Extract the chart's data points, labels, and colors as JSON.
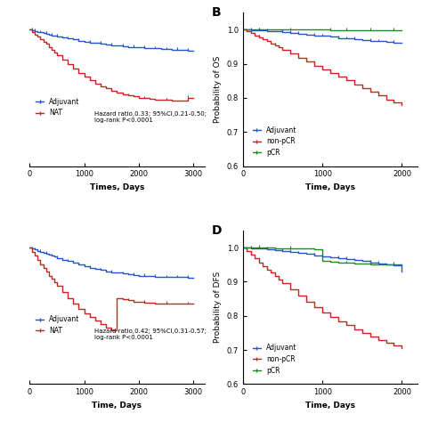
{
  "panel_A": {
    "blue_x": [
      0,
      50,
      100,
      150,
      200,
      250,
      300,
      350,
      400,
      450,
      500,
      600,
      700,
      800,
      900,
      1000,
      1100,
      1200,
      1300,
      1400,
      1500,
      1600,
      1700,
      1800,
      1900,
      2000,
      2100,
      2200,
      2300,
      2400,
      2500,
      2600,
      2700,
      2800,
      2900,
      3000
    ],
    "blue_y": [
      1.0,
      0.998,
      0.996,
      0.994,
      0.992,
      0.99,
      0.988,
      0.986,
      0.984,
      0.982,
      0.98,
      0.977,
      0.974,
      0.971,
      0.968,
      0.965,
      0.963,
      0.961,
      0.959,
      0.957,
      0.955,
      0.953,
      0.951,
      0.95,
      0.949,
      0.948,
      0.947,
      0.946,
      0.945,
      0.944,
      0.943,
      0.942,
      0.941,
      0.94,
      0.939,
      0.938
    ],
    "red_x": [
      0,
      50,
      100,
      150,
      200,
      250,
      300,
      350,
      400,
      450,
      500,
      600,
      700,
      800,
      900,
      1000,
      1100,
      1200,
      1300,
      1400,
      1500,
      1600,
      1700,
      1800,
      1900,
      2000,
      2100,
      2200,
      2300,
      2400,
      2500,
      2600,
      2700,
      2800,
      2900,
      3000
    ],
    "red_y": [
      1.0,
      0.993,
      0.986,
      0.979,
      0.972,
      0.965,
      0.958,
      0.95,
      0.942,
      0.934,
      0.926,
      0.912,
      0.898,
      0.885,
      0.873,
      0.862,
      0.852,
      0.843,
      0.835,
      0.828,
      0.822,
      0.816,
      0.811,
      0.807,
      0.804,
      0.801,
      0.799,
      0.797,
      0.796,
      0.795,
      0.794,
      0.793,
      0.792,
      0.791,
      0.8,
      0.8
    ],
    "xlabel": "Times, Days",
    "ylabel": "",
    "xlim": [
      0,
      3200
    ],
    "ylim": [
      0.6,
      1.05
    ],
    "xticks": [
      0,
      1000,
      2000,
      3000
    ],
    "hazard_text": "Hazard ratio,0.33; 95%CI,0.21-0.50;\nlog-rank P<0.0001"
  },
  "panel_B": {
    "blue_x": [
      0,
      100,
      200,
      300,
      400,
      500,
      600,
      700,
      800,
      900,
      1000,
      1100,
      1200,
      1300,
      1400,
      1500,
      1600,
      1700,
      1800,
      1900,
      2000
    ],
    "blue_y": [
      1.0,
      0.999,
      0.998,
      0.997,
      0.995,
      0.993,
      0.991,
      0.988,
      0.986,
      0.984,
      0.982,
      0.979,
      0.976,
      0.974,
      0.972,
      0.97,
      0.968,
      0.966,
      0.964,
      0.963,
      0.962
    ],
    "red_x": [
      0,
      50,
      100,
      150,
      200,
      250,
      300,
      350,
      400,
      450,
      500,
      600,
      700,
      800,
      900,
      1000,
      1100,
      1200,
      1300,
      1400,
      1500,
      1600,
      1700,
      1800,
      1900,
      2000
    ],
    "red_y": [
      1.0,
      0.995,
      0.99,
      0.984,
      0.978,
      0.972,
      0.966,
      0.96,
      0.954,
      0.948,
      0.942,
      0.93,
      0.918,
      0.906,
      0.895,
      0.884,
      0.873,
      0.862,
      0.851,
      0.84,
      0.829,
      0.818,
      0.807,
      0.796,
      0.787,
      0.778
    ],
    "green_x": [
      0,
      200,
      400,
      600,
      800,
      1000,
      1100,
      1200,
      1300,
      1400,
      1500,
      1600,
      1700,
      1800,
      1900,
      2000
    ],
    "green_y": [
      1.0,
      1.0,
      1.0,
      1.0,
      1.0,
      1.0,
      0.999,
      0.999,
      0.999,
      0.999,
      0.999,
      0.999,
      0.999,
      0.998,
      0.998,
      0.998
    ],
    "xlabel": "Time, Days",
    "ylabel": "Probability of OS",
    "xlim": [
      0,
      2200
    ],
    "ylim": [
      0.6,
      1.05
    ],
    "xticks": [
      0,
      1000,
      2000
    ],
    "yticks": [
      0.6,
      0.7,
      0.8,
      0.9,
      1.0
    ],
    "panel_label": "B"
  },
  "panel_C": {
    "blue_x": [
      0,
      50,
      100,
      150,
      200,
      250,
      300,
      350,
      400,
      450,
      500,
      600,
      700,
      800,
      900,
      1000,
      1100,
      1200,
      1300,
      1400,
      1500,
      1600,
      1700,
      1800,
      1900,
      2000,
      2100,
      2200,
      2300,
      2400,
      2500,
      2600,
      2700,
      2800,
      2900,
      3000
    ],
    "blue_y": [
      1.0,
      0.997,
      0.994,
      0.991,
      0.988,
      0.985,
      0.982,
      0.979,
      0.976,
      0.973,
      0.97,
      0.965,
      0.96,
      0.955,
      0.95,
      0.945,
      0.941,
      0.937,
      0.934,
      0.931,
      0.928,
      0.926,
      0.924,
      0.922,
      0.92,
      0.918,
      0.917,
      0.916,
      0.915,
      0.914,
      0.913,
      0.913,
      0.913,
      0.913,
      0.912,
      0.912
    ],
    "red_x": [
      0,
      50,
      100,
      150,
      200,
      250,
      300,
      350,
      400,
      450,
      500,
      600,
      700,
      800,
      900,
      1000,
      1100,
      1200,
      1300,
      1400,
      1500,
      1600,
      1700,
      1800,
      1900,
      2000,
      2100,
      2200,
      2300,
      2400,
      2500,
      2600,
      2700,
      2800,
      2900,
      3000
    ],
    "red_y": [
      1.0,
      0.988,
      0.976,
      0.964,
      0.952,
      0.94,
      0.929,
      0.918,
      0.908,
      0.898,
      0.888,
      0.869,
      0.852,
      0.836,
      0.821,
      0.808,
      0.796,
      0.785,
      0.775,
      0.766,
      0.758,
      0.852,
      0.848,
      0.845,
      0.842,
      0.84,
      0.839,
      0.838,
      0.837,
      0.837,
      0.836,
      0.836,
      0.836,
      0.835,
      0.835,
      0.835
    ],
    "xlabel": "Time, Days",
    "ylabel": "",
    "xlim": [
      0,
      3200
    ],
    "ylim": [
      0.6,
      1.05
    ],
    "xticks": [
      0,
      1000,
      2000,
      3000
    ],
    "hazard_text": "Hazard ratio,0.42; 95%CI,0.31-0.57;\nlog-rank P<0.0001"
  },
  "panel_D": {
    "blue_x": [
      0,
      100,
      200,
      300,
      400,
      500,
      600,
      700,
      800,
      900,
      1000,
      1100,
      1200,
      1300,
      1400,
      1500,
      1600,
      1700,
      1800,
      1900,
      2000
    ],
    "blue_y": [
      1.0,
      0.999,
      0.997,
      0.995,
      0.993,
      0.99,
      0.987,
      0.984,
      0.981,
      0.978,
      0.975,
      0.972,
      0.969,
      0.966,
      0.963,
      0.96,
      0.957,
      0.954,
      0.951,
      0.948,
      0.93
    ],
    "red_x": [
      0,
      50,
      100,
      150,
      200,
      250,
      300,
      350,
      400,
      450,
      500,
      600,
      700,
      800,
      900,
      1000,
      1100,
      1200,
      1300,
      1400,
      1500,
      1600,
      1700,
      1800,
      1900,
      2000
    ],
    "red_y": [
      1.0,
      0.99,
      0.979,
      0.968,
      0.957,
      0.946,
      0.936,
      0.926,
      0.916,
      0.906,
      0.896,
      0.877,
      0.859,
      0.842,
      0.826,
      0.811,
      0.797,
      0.784,
      0.772,
      0.761,
      0.75,
      0.74,
      0.73,
      0.721,
      0.713,
      0.706
    ],
    "green_x": [
      0,
      200,
      400,
      600,
      800,
      900,
      1000,
      1100,
      1200,
      1300,
      1400,
      1500,
      1600,
      1700,
      1800,
      1900,
      2000
    ],
    "green_y": [
      1.0,
      1.0,
      0.999,
      0.998,
      0.997,
      0.996,
      0.96,
      0.958,
      0.956,
      0.955,
      0.954,
      0.953,
      0.952,
      0.952,
      0.951,
      0.951,
      0.95
    ],
    "xlabel": "Time, Days",
    "ylabel": "Probability of DFS",
    "xlim": [
      0,
      2200
    ],
    "ylim": [
      0.6,
      1.05
    ],
    "xticks": [
      0,
      1000,
      2000
    ],
    "yticks": [
      0.6,
      0.7,
      0.8,
      0.9,
      1.0
    ],
    "panel_label": "D"
  },
  "colors": {
    "blue": "#2255CC",
    "red": "#CC2222",
    "green": "#228822"
  }
}
